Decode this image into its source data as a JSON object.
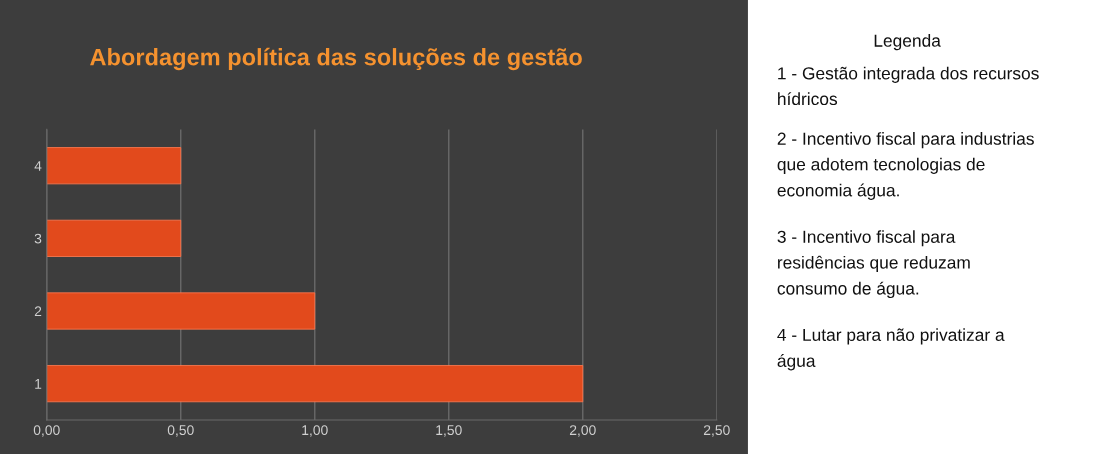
{
  "chart_data": {
    "type": "bar",
    "orientation": "horizontal",
    "title": "Abordagem política das soluções de gestão",
    "categories": [
      "4",
      "3",
      "2",
      "1"
    ],
    "series": [
      {
        "color": "#e24a1c",
        "values": [
          0.5,
          0.5,
          1,
          2
        ]
      }
    ],
    "xlim": [
      0,
      2.5
    ],
    "xticks": [
      {
        "value": 0,
        "label": "0,00"
      },
      {
        "value": 0.5,
        "label": "0,50"
      },
      {
        "value": 1,
        "label": "1,00"
      },
      {
        "value": 1.5,
        "label": "1,50"
      },
      {
        "value": 2,
        "label": "2,00"
      },
      {
        "value": 2.5,
        "label": "2,50"
      }
    ],
    "grid": "x",
    "legend": false,
    "annotations": [
      "Legenda",
      "1 - Gestão integrada dos recursos\nhídricos",
      "2 - Incentivo fiscal para industrias\nque adotem tecnologias de\neconomia água.",
      "3 - Incentivo fiscal para\nresidências que reduzam\nconsumo de água.",
      "4 - Lutar para não privatizar a\nágua"
    ]
  }
}
